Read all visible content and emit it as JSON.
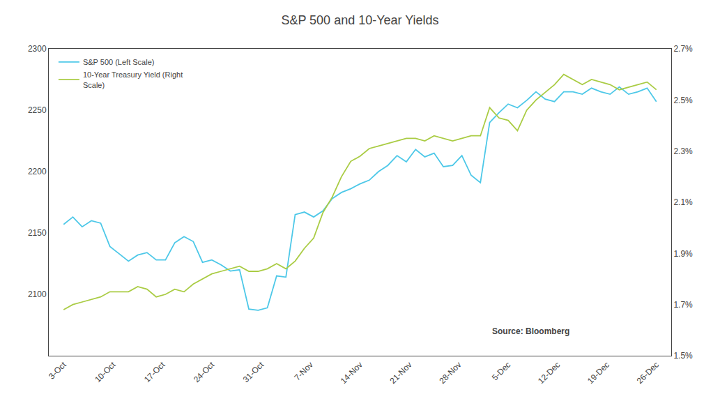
{
  "chart_data": {
    "type": "line",
    "title": "S&P 500 and 10-Year Yields",
    "annotations": [
      "Source: Bloomberg"
    ],
    "x": [
      0,
      0.1875,
      0.375,
      0.5625,
      0.75,
      0.9375,
      1.125,
      1.3125,
      1.5,
      1.6875,
      1.875,
      2.0625,
      2.25,
      2.4375,
      2.625,
      2.8125,
      3,
      3.1875,
      3.375,
      3.5625,
      3.75,
      3.9375,
      4.125,
      4.3125,
      4.5,
      4.6875,
      4.875,
      5.0625,
      5.25,
      5.4375,
      5.625,
      5.8125,
      6,
      6.1875,
      6.375,
      6.5625,
      6.75,
      6.9375,
      7.125,
      7.3125,
      7.5,
      7.6875,
      7.875,
      8.0625,
      8.25,
      8.4375,
      8.625,
      8.8125,
      9,
      9.1875,
      9.375,
      9.5625,
      9.75,
      9.9375,
      10.125,
      10.3125,
      10.5,
      10.6875,
      10.875,
      11.0625,
      11.25,
      11.4375,
      11.625,
      11.8125,
      12
    ],
    "xlim": [
      -0.3,
      12.3
    ],
    "xticks": [
      {
        "value": 0,
        "label": "3-Oct"
      },
      {
        "value": 1,
        "label": "10-Oct"
      },
      {
        "value": 2,
        "label": "17-Oct"
      },
      {
        "value": 3,
        "label": "24-Oct"
      },
      {
        "value": 4,
        "label": "31-Oct"
      },
      {
        "value": 5,
        "label": "7-Nov"
      },
      {
        "value": 6,
        "label": "14-Nov"
      },
      {
        "value": 7,
        "label": "21-Nov"
      },
      {
        "value": 8,
        "label": "28-Nov"
      },
      {
        "value": 9,
        "label": "5-Dec"
      },
      {
        "value": 10,
        "label": "12-Dec"
      },
      {
        "value": 11,
        "label": "19-Dec"
      },
      {
        "value": 12,
        "label": "26-Dec"
      }
    ],
    "ylim": [
      2050,
      2300
    ],
    "yticks": [
      2100,
      2150,
      2200,
      2250,
      2300
    ],
    "y2lim": [
      1.5,
      2.7
    ],
    "y2ticks": [
      {
        "value": 1.5,
        "label": "1.5%"
      },
      {
        "value": 1.7,
        "label": "1.7%"
      },
      {
        "value": 1.9,
        "label": "1.9%"
      },
      {
        "value": 2.1,
        "label": "2.1%"
      },
      {
        "value": 2.3,
        "label": "2.3%"
      },
      {
        "value": 2.5,
        "label": "2.5%"
      },
      {
        "value": 2.7,
        "label": "2.7%"
      }
    ],
    "grid": false,
    "legend": "upper left",
    "series": [
      {
        "name": "S&P 500 (Left Scale)",
        "color": "#4DC8E8",
        "values": [
          2157,
          2163,
          2155,
          2160,
          2158,
          2139,
          2133,
          2127,
          2132,
          2134,
          2128,
          2128,
          2142,
          2147,
          2143,
          2126,
          2128,
          2124,
          2119,
          2120,
          2088,
          2087,
          2089,
          2115,
          2114,
          2165,
          2167,
          2163,
          2168,
          2178,
          2183,
          2186,
          2190,
          2193,
          2200,
          2205,
          2213,
          2208,
          2218,
          2212,
          2215,
          2204,
          2205,
          2213,
          2197,
          2191,
          2240,
          2248,
          2255,
          2252,
          2258,
          2265,
          2259,
          2257,
          2265,
          2265,
          2263,
          2268,
          2265,
          2263,
          2269,
          2263,
          2265,
          2268,
          2257
        ]
      },
      {
        "name": "10-Year Treasury Yield (Right\nScale)",
        "color": "#AACC44",
        "axis": "y2",
        "values": [
          1.68,
          1.7,
          1.71,
          1.72,
          1.73,
          1.75,
          1.75,
          1.75,
          1.77,
          1.76,
          1.73,
          1.74,
          1.76,
          1.75,
          1.78,
          1.8,
          1.82,
          1.83,
          1.84,
          1.85,
          1.83,
          1.83,
          1.84,
          1.86,
          1.84,
          1.87,
          1.92,
          1.96,
          2.06,
          2.12,
          2.2,
          2.26,
          2.28,
          2.31,
          2.32,
          2.33,
          2.34,
          2.35,
          2.35,
          2.34,
          2.36,
          2.35,
          2.34,
          2.35,
          2.36,
          2.36,
          2.47,
          2.43,
          2.42,
          2.38,
          2.46,
          2.5,
          2.53,
          2.56,
          2.6,
          2.58,
          2.56,
          2.58,
          2.57,
          2.56,
          2.54,
          2.55,
          2.56,
          2.57,
          2.54
        ]
      }
    ]
  }
}
